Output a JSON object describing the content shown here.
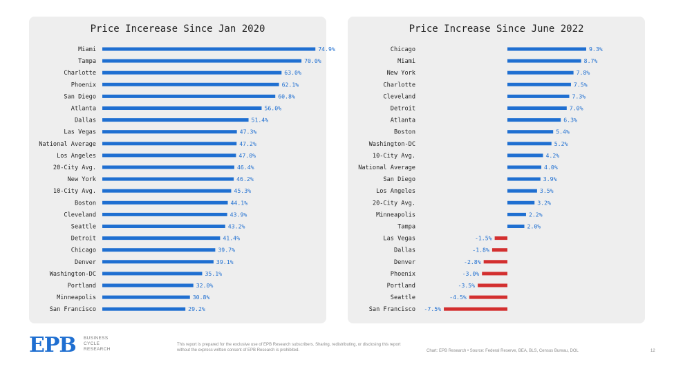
{
  "colors": {
    "positive": "#1f6fd1",
    "negative": "#d32f2f",
    "panel": "#eeeeee"
  },
  "chart_data": [
    {
      "type": "bar",
      "orientation": "horizontal",
      "title": "Price Incerease Since Jan 2020",
      "categories": [
        "Miami",
        "Tampa",
        "Charlotte",
        "Phoenix",
        "San Diego",
        "Atlanta",
        "Dallas",
        "Las Vegas",
        "National Average",
        "Los Angeles",
        "20-City Avg.",
        "New York",
        "10-City Avg.",
        "Boston",
        "Cleveland",
        "Seattle",
        "Detroit",
        "Chicago",
        "Denver",
        "Washington-DC",
        "Portland",
        "Minneapolis",
        "San Francisco"
      ],
      "values": [
        74.9,
        70.0,
        63.0,
        62.1,
        60.8,
        56.0,
        51.4,
        47.3,
        47.2,
        47.0,
        46.4,
        46.2,
        45.3,
        44.1,
        43.9,
        43.2,
        41.4,
        39.7,
        39.1,
        35.1,
        32.0,
        30.8,
        29.2
      ],
      "value_labels": [
        "74.9%",
        "70.0%",
        "63.0%",
        "62.1%",
        "60.8%",
        "56.0%",
        "51.4%",
        "47.3%",
        "47.2%",
        "47.0%",
        "46.4%",
        "46.2%",
        "45.3%",
        "44.1%",
        "43.9%",
        "43.2%",
        "41.4%",
        "39.7%",
        "39.1%",
        "35.1%",
        "32.0%",
        "30.8%",
        "29.2%"
      ],
      "xlim": [
        0,
        78
      ],
      "grid": false
    },
    {
      "type": "bar",
      "orientation": "horizontal",
      "title": "Price Increase Since June 2022",
      "categories": [
        "Chicago",
        "Miami",
        "New York",
        "Charlotte",
        "Cleveland",
        "Detroit",
        "Atlanta",
        "Boston",
        "Washington-DC",
        "10-City Avg.",
        "National Average",
        "San Diego",
        "Los Angeles",
        "20-City Avg.",
        "Minneapolis",
        "Tampa",
        "Las Vegas",
        "Dallas",
        "Denver",
        "Phoenix",
        "Portland",
        "Seattle",
        "San Francisco"
      ],
      "values": [
        9.3,
        8.7,
        7.8,
        7.5,
        7.3,
        7.0,
        6.3,
        5.4,
        5.2,
        4.2,
        4.0,
        3.9,
        3.5,
        3.2,
        2.2,
        2.0,
        -1.5,
        -1.8,
        -2.8,
        -3.0,
        -3.5,
        -4.5,
        -7.5
      ],
      "value_labels": [
        "9.3%",
        "8.7%",
        "7.8%",
        "7.5%",
        "7.3%",
        "7.0%",
        "6.3%",
        "5.4%",
        "5.2%",
        "4.2%",
        "4.0%",
        "3.9%",
        "3.5%",
        "3.2%",
        "2.2%",
        "2.0%",
        "-1.5%",
        "-1.8%",
        "-2.8%",
        "-3.0%",
        "-3.5%",
        "-4.5%",
        "-7.5%"
      ],
      "xlim": [
        -7.5,
        9.3
      ],
      "grid": false
    }
  ],
  "footer": {
    "logo": "EPB",
    "logo_sub": [
      "BUSINESS",
      "CYCLE",
      "RESEARCH"
    ],
    "disclaimer": "This report is prepared for the exclusive use of EPB Research subscribers. Sharing, redistributing, or disclosing this report without the express written consent of EPB Research is prohibited.",
    "source": "Chart: EPB Research  •  Source: Federal Reserve, BEA, BLS, Census Bureau, DOL",
    "page": "12"
  }
}
